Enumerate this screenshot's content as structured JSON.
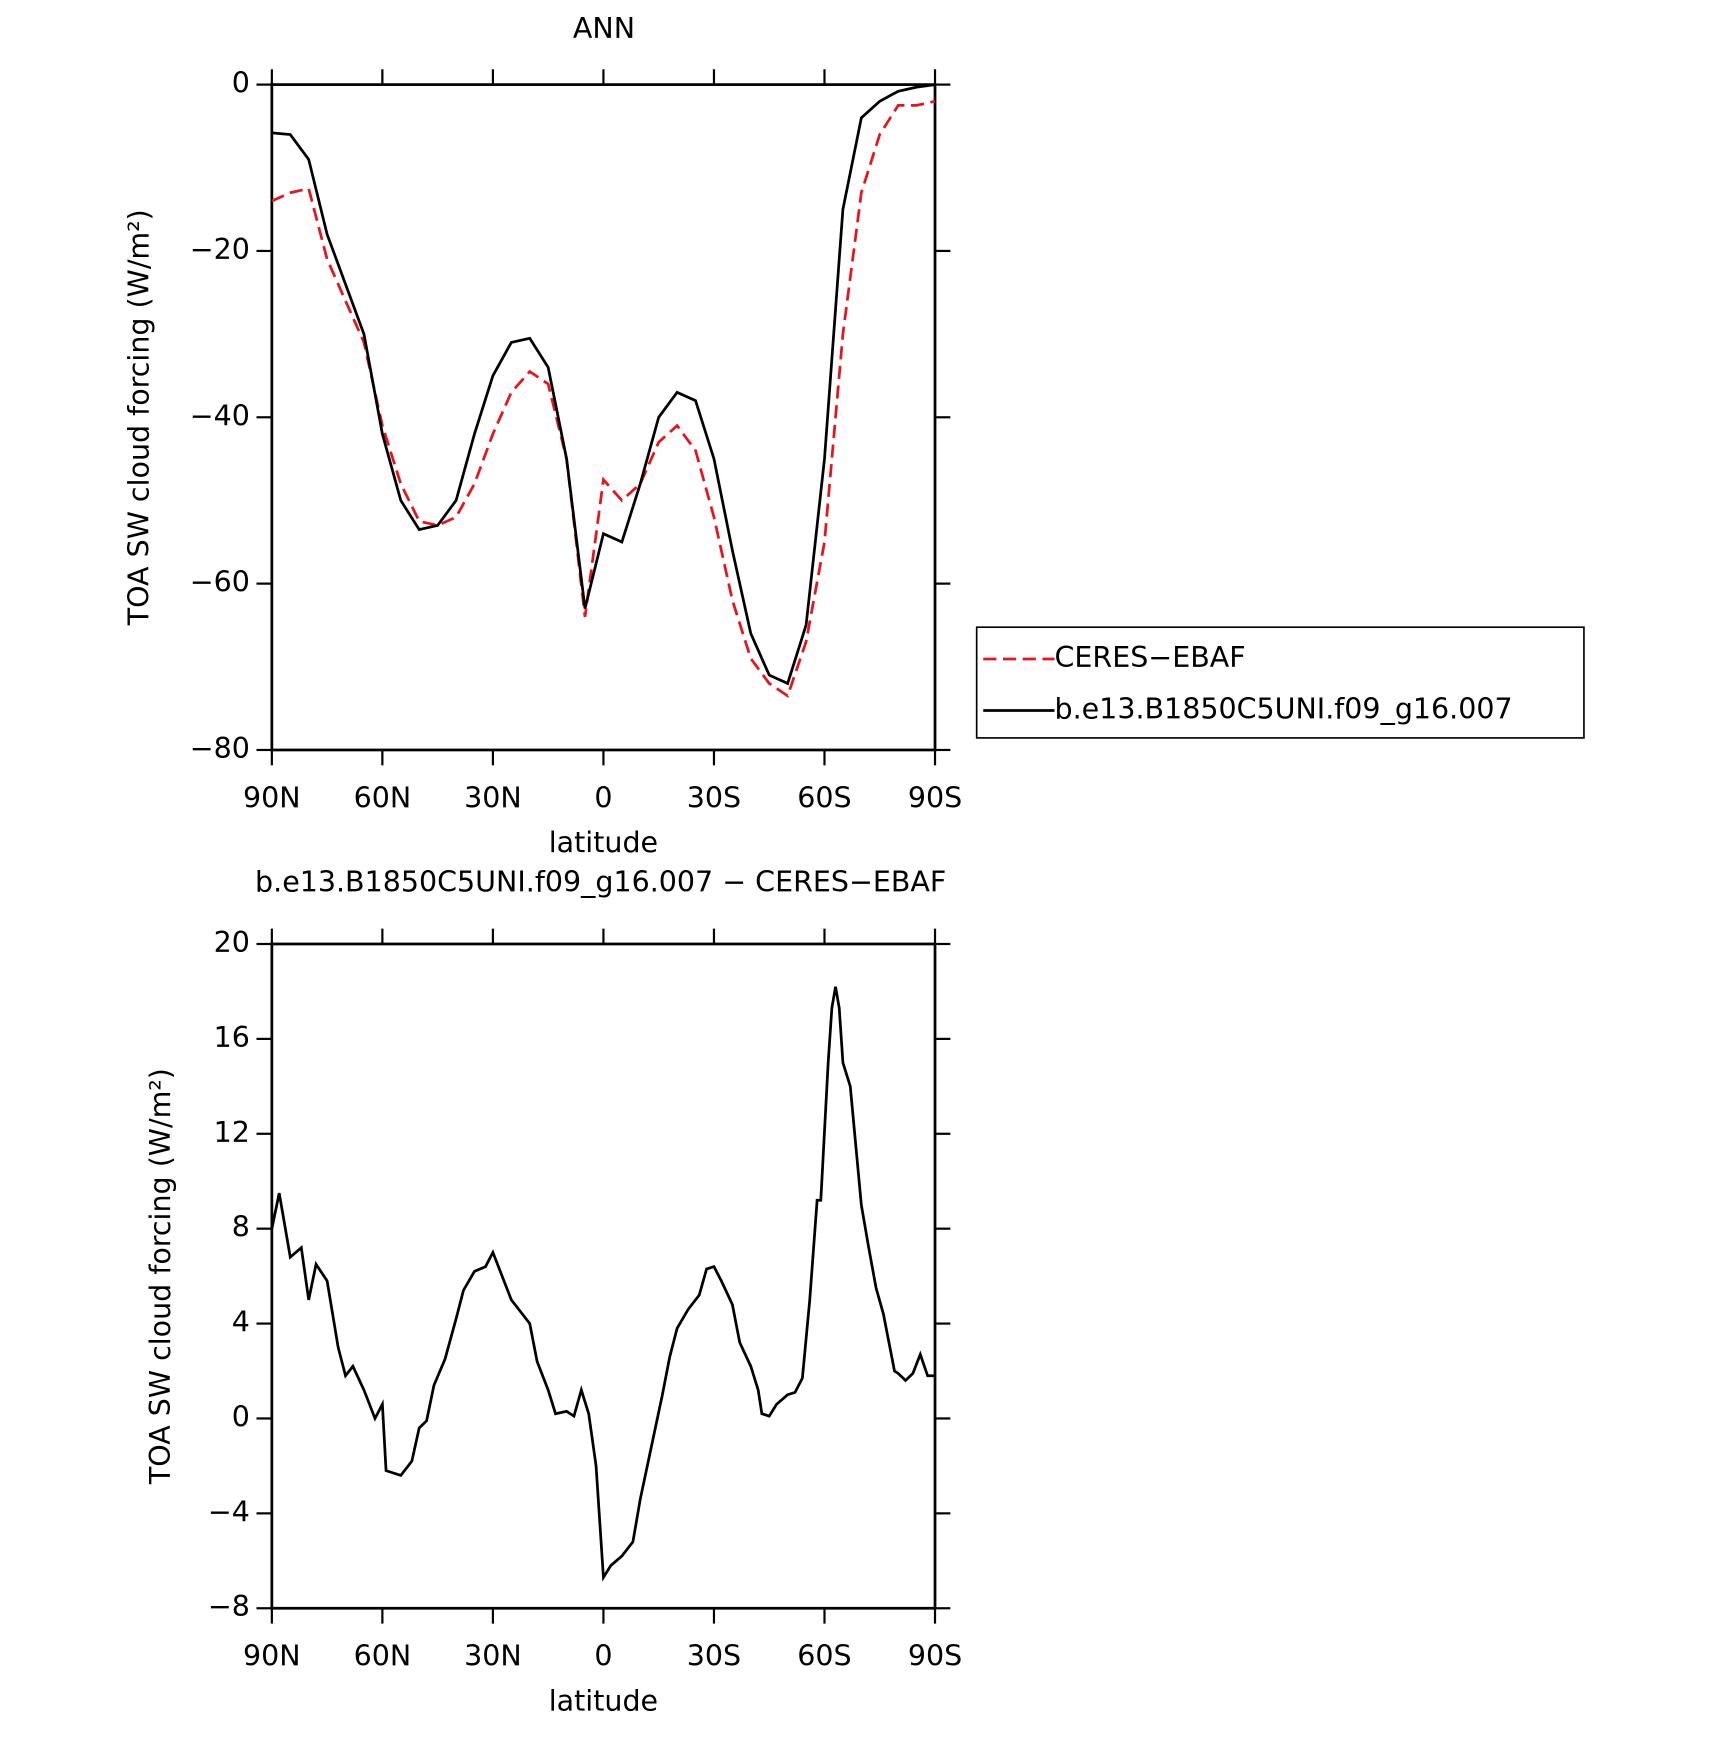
{
  "chart_data": [
    {
      "type": "line",
      "title": "ANN",
      "xlabel": "latitude",
      "ylabel": "TOA SW cloud forcing (W/m²)",
      "x": [
        90,
        85,
        80,
        75,
        70,
        65,
        60,
        55,
        50,
        45,
        40,
        35,
        30,
        25,
        20,
        15,
        10,
        5,
        0,
        -5,
        -10,
        -15,
        -20,
        -25,
        -30,
        -35,
        -40,
        -45,
        -50,
        -55,
        -60,
        -65,
        -70,
        -75,
        -80,
        -85,
        -90
      ],
      "series": [
        {
          "name": "CERES−EBAF",
          "color": "#e8141c",
          "linestyle": "dashed",
          "values": [
            -14,
            -13,
            -12.5,
            -21,
            -26,
            -31,
            -41,
            -48,
            -52.5,
            -53,
            -52,
            -48,
            -42,
            -37,
            -34.5,
            -36,
            -45,
            -64,
            -47.5,
            -50,
            -48,
            -43,
            -41,
            -44,
            -52,
            -62,
            -69,
            -72,
            -73.5,
            -67,
            -55,
            -30,
            -13,
            -6,
            -2.5,
            -2.5,
            -2
          ]
        },
        {
          "name": "b.e13.B1850C5UNI.f09_g16.007",
          "color": "#000000",
          "linestyle": "solid",
          "values": [
            -5.8,
            -6,
            -9,
            -18,
            -24,
            -30,
            -42,
            -50,
            -53.5,
            -53,
            -50,
            -42,
            -35,
            -31,
            -30.5,
            -34,
            -45,
            -63,
            -54,
            -55,
            -48,
            -40,
            -37,
            -38,
            -45,
            -56,
            -66,
            -71,
            -72,
            -65,
            -45,
            -15,
            -4,
            -2,
            -0.8,
            -0.3,
            0
          ]
        }
      ],
      "xlim": [
        90,
        -90
      ],
      "xticks": [
        {
          "value": 90,
          "label": "90N"
        },
        {
          "value": 60,
          "label": "60N"
        },
        {
          "value": 30,
          "label": "30N"
        },
        0,
        {
          "value": -30,
          "label": "30S"
        },
        {
          "value": -60,
          "label": "60S"
        },
        {
          "value": -90,
          "label": "90S"
        }
      ],
      "ylim": [
        -80,
        0
      ],
      "yticks": [
        0,
        {
          "value": -20,
          "label": "−20"
        },
        {
          "value": -40,
          "label": "−40"
        },
        {
          "value": -60,
          "label": "−60"
        },
        {
          "value": -80,
          "label": "−80"
        }
      ],
      "legend": "right"
    },
    {
      "type": "line",
      "title": "b.e13.B1850C5UNI.f09_g16.007 − CERES−EBAF",
      "xlabel": "latitude",
      "ylabel": "TOA SW cloud forcing (W/m²)",
      "x": [
        90,
        88,
        85,
        82,
        80,
        78,
        75,
        72,
        70,
        68,
        65,
        62,
        60,
        59,
        55,
        52,
        50,
        48,
        46,
        43,
        40,
        38,
        35,
        32,
        30,
        28,
        25,
        22,
        20,
        18,
        15,
        13,
        10,
        8,
        6,
        4,
        2,
        0,
        -2,
        -5,
        -8,
        -10,
        -13,
        -16,
        -18,
        -20,
        -23,
        -26,
        -28,
        -30,
        -32,
        -35,
        -37,
        -40,
        -42,
        -43,
        -45,
        -47,
        -50,
        -52,
        -54,
        -56,
        -58,
        -59,
        -61,
        -62,
        -63,
        -64,
        -65,
        -67,
        -70,
        -72,
        -74,
        -76,
        -79,
        -80,
        -82,
        -84,
        -86,
        -88,
        -90
      ],
      "series": [
        {
          "color": "#000000",
          "linestyle": "solid",
          "values": [
            8,
            9.5,
            6.8,
            7.2,
            5,
            6.5,
            5.8,
            3,
            1.8,
            2.2,
            1.2,
            0,
            0.6,
            -2.2,
            -2.4,
            -1.8,
            -0.4,
            -0.1,
            1.4,
            2.5,
            4.2,
            5.4,
            6.2,
            6.4,
            7,
            6.2,
            5,
            4.4,
            4,
            2.4,
            1.2,
            0.2,
            0.3,
            0.1,
            1.2,
            0.2,
            -2,
            -6.7,
            -6.2,
            -5.8,
            -5.2,
            -3.4,
            -1.2,
            1,
            2.6,
            3.8,
            4.6,
            5.2,
            6.3,
            6.4,
            5.8,
            4.8,
            3.2,
            2.2,
            1.2,
            0.2,
            0.1,
            0.6,
            1,
            1.1,
            1.7,
            5,
            9.2,
            9.2,
            15,
            17.3,
            18.2,
            17.3,
            15,
            14,
            9,
            7.2,
            5.5,
            4.4,
            2,
            1.9,
            1.6,
            1.9,
            2.7,
            1.8,
            1.8
          ]
        }
      ],
      "xlim": [
        90,
        -90
      ],
      "xticks": [
        {
          "value": 90,
          "label": "90N"
        },
        {
          "value": 60,
          "label": "60N"
        },
        {
          "value": 30,
          "label": "30N"
        },
        0,
        {
          "value": -30,
          "label": "30S"
        },
        {
          "value": -60,
          "label": "60S"
        },
        {
          "value": -90,
          "label": "90S"
        }
      ],
      "ylim": [
        -8,
        20
      ],
      "yticks": [
        20,
        16,
        12,
        8,
        4,
        0,
        {
          "value": -4,
          "label": "−4"
        },
        {
          "value": -8,
          "label": "−8"
        }
      ]
    }
  ]
}
